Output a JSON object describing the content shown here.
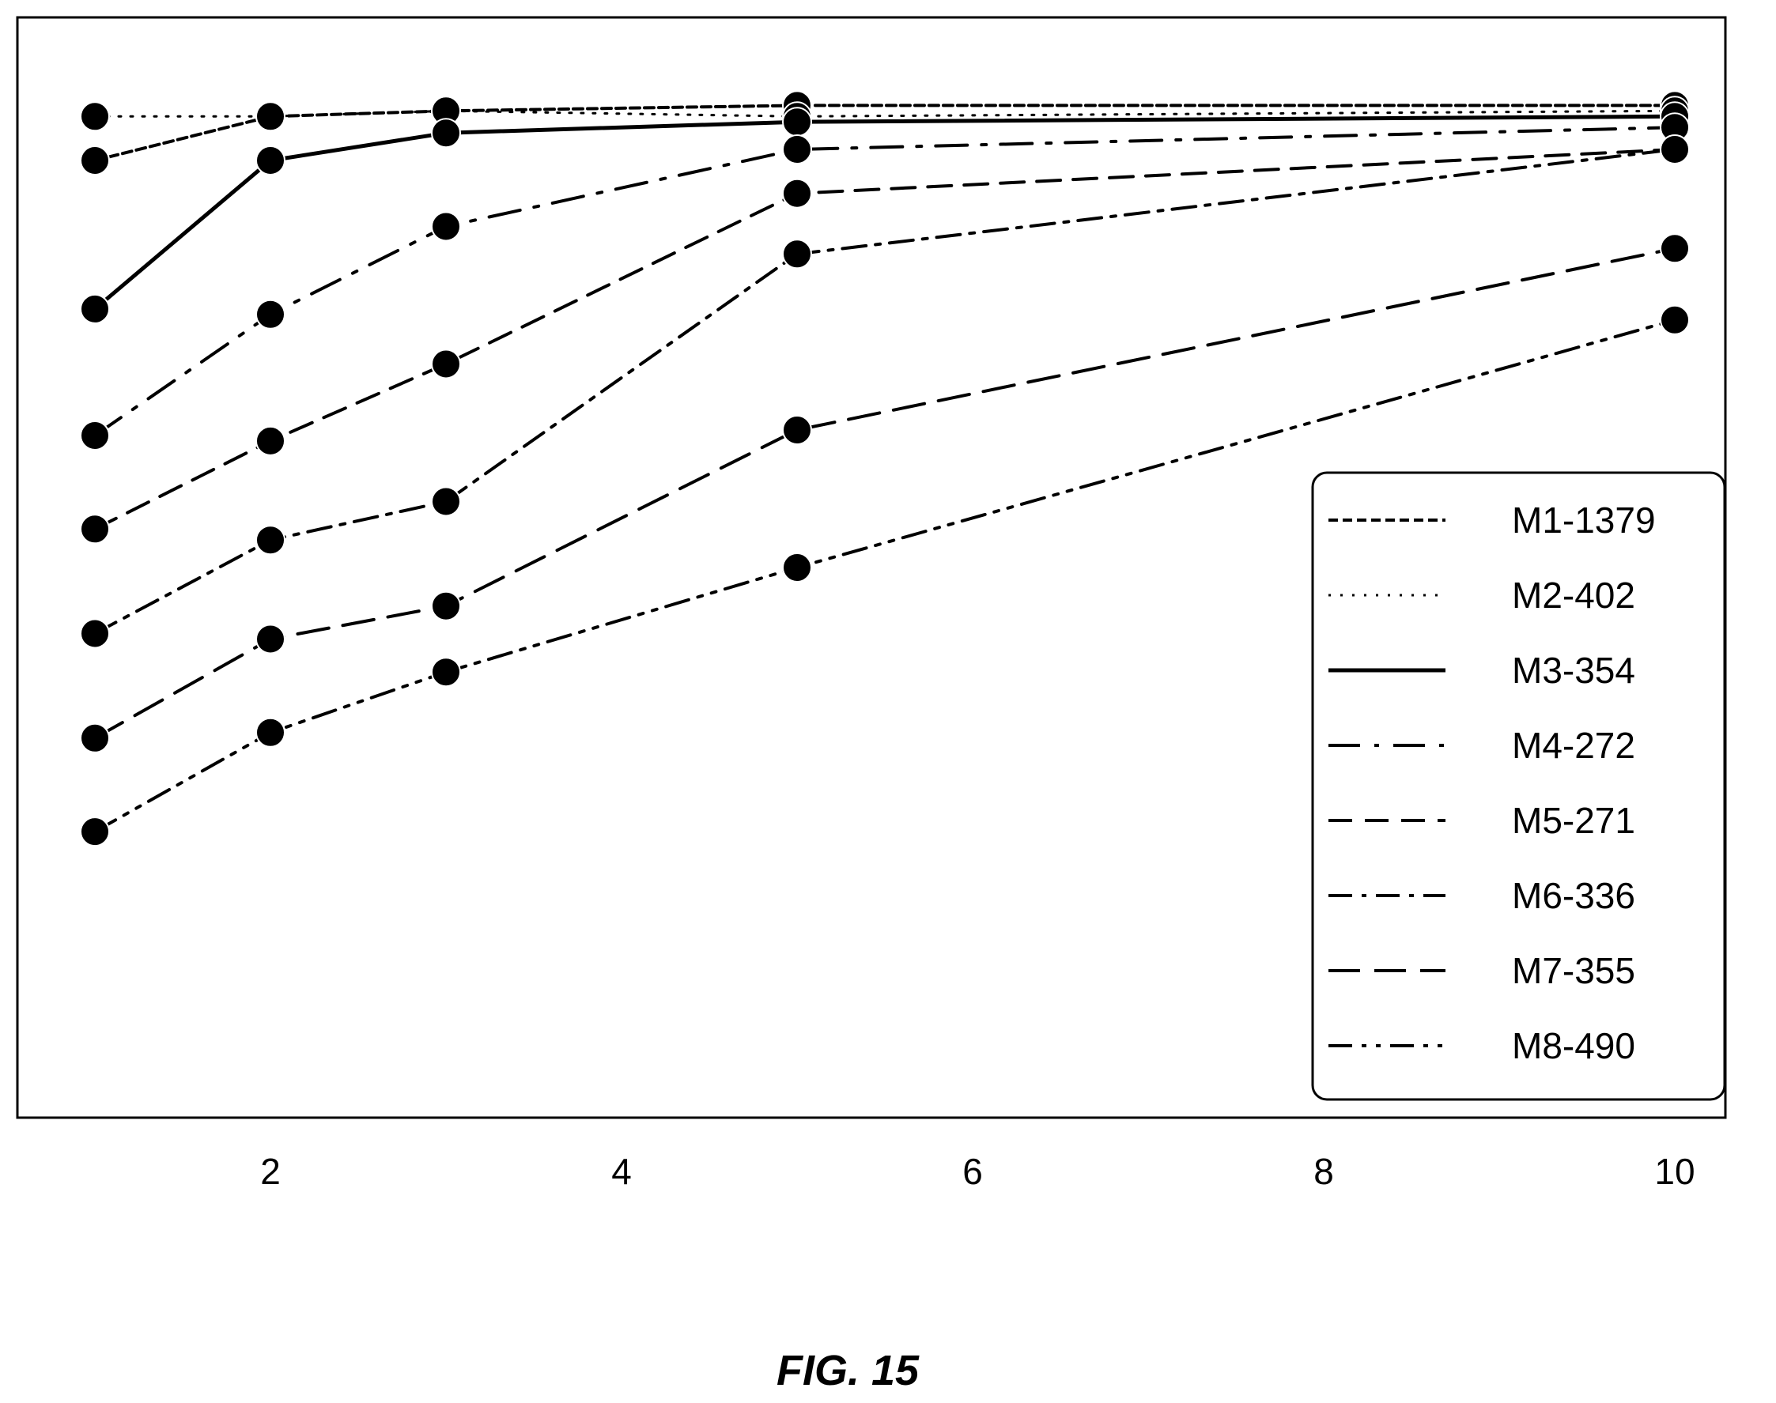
{
  "chart_data": {
    "type": "line",
    "title": "",
    "xlabel": "",
    "ylabel": "",
    "x": [
      1,
      2,
      3,
      5,
      10
    ],
    "xlim": [
      0.0,
      10.3
    ],
    "ylim": [
      0,
      100
    ],
    "xticks": [
      2,
      4,
      6,
      8,
      10
    ],
    "yticks": [],
    "grid": false,
    "legend_position": "bottom-right",
    "marker": "filled-circle",
    "series": [
      {
        "name": "M1-1379",
        "values": [
          87.0,
          91.0,
          91.5,
          92.0,
          92.0
        ],
        "dash": "12 6",
        "width": 4
      },
      {
        "name": "M2-402",
        "values": [
          91.0,
          91.0,
          91.5,
          91.0,
          91.5
        ],
        "dash": "3 12",
        "width": 3
      },
      {
        "name": "M3-354",
        "values": [
          73.5,
          87.0,
          89.5,
          90.5,
          91.0
        ],
        "dash": "",
        "width": 5
      },
      {
        "name": "M4-272",
        "values": [
          62.0,
          73.0,
          81.0,
          88.0,
          90.0
        ],
        "dash": "40 18 6 18",
        "width": 4
      },
      {
        "name": "M5-271",
        "values": [
          53.5,
          61.5,
          68.5,
          84.0,
          88.0
        ],
        "dash": "30 16",
        "width": 4
      },
      {
        "name": "M6-336",
        "values": [
          44.0,
          52.5,
          56.0,
          78.5,
          88.0
        ],
        "dash": "30 12 6 12",
        "width": 4
      },
      {
        "name": "M7-355",
        "values": [
          34.5,
          43.5,
          46.5,
          62.5,
          79.0
        ],
        "dash": "40 18",
        "width": 4
      },
      {
        "name": "M8-490",
        "values": [
          26.0,
          35.0,
          40.5,
          50.0,
          72.5
        ],
        "dash": "30 12 6 12 6 12",
        "width": 4
      }
    ],
    "colors": {
      "line": "#000000",
      "marker": "#000000",
      "background": "#ffffff"
    }
  },
  "caption": "FIG. 15"
}
